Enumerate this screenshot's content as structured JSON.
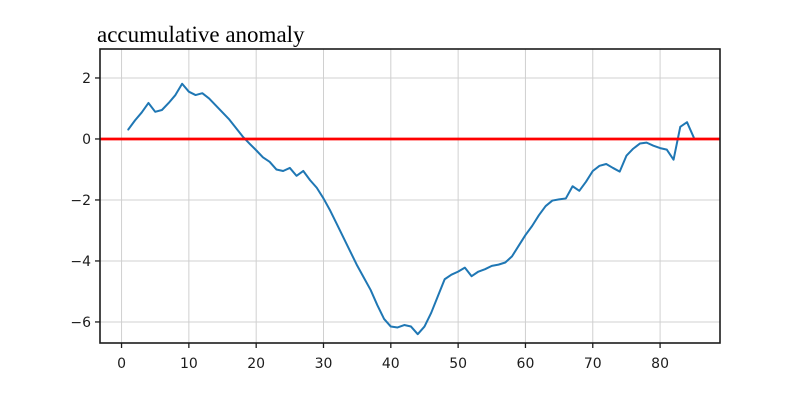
{
  "chart_data": {
    "type": "line",
    "title": "accumulative anomaly",
    "x": [
      1,
      2,
      3,
      4,
      5,
      6,
      7,
      8,
      9,
      10,
      11,
      12,
      13,
      14,
      15,
      16,
      17,
      18,
      19,
      20,
      21,
      22,
      23,
      24,
      25,
      26,
      27,
      28,
      29,
      30,
      31,
      32,
      33,
      34,
      35,
      36,
      37,
      38,
      39,
      40,
      41,
      42,
      43,
      44,
      45,
      46,
      47,
      48,
      49,
      50,
      51,
      52,
      53,
      54,
      55,
      56,
      57,
      58,
      59,
      60,
      61,
      62,
      63,
      64,
      65,
      66,
      67,
      68,
      69,
      70,
      71,
      72,
      73,
      74,
      75,
      76,
      77,
      78,
      79,
      80,
      81,
      82,
      83,
      84,
      85
    ],
    "series": [
      {
        "name": "accumulative anomaly",
        "color": "#1f77b4",
        "values": [
          0.31,
          0.61,
          0.87,
          1.18,
          0.89,
          0.95,
          1.18,
          1.44,
          1.81,
          1.55,
          1.44,
          1.5,
          1.33,
          1.1,
          0.87,
          0.64,
          0.36,
          0.08,
          -0.15,
          -0.37,
          -0.6,
          -0.75,
          -1.0,
          -1.05,
          -0.95,
          -1.21,
          -1.05,
          -1.35,
          -1.6,
          -1.95,
          -2.35,
          -2.8,
          -3.25,
          -3.7,
          -4.15,
          -4.55,
          -4.95,
          -5.45,
          -5.9,
          -6.15,
          -6.18,
          -6.1,
          -6.15,
          -6.4,
          -6.15,
          -5.7,
          -5.15,
          -4.6,
          -4.45,
          -4.35,
          -4.22,
          -4.5,
          -4.35,
          -4.27,
          -4.16,
          -4.12,
          -4.05,
          -3.85,
          -3.5,
          -3.15,
          -2.85,
          -2.5,
          -2.2,
          -2.02,
          -1.98,
          -1.95,
          -1.55,
          -1.7,
          -1.4,
          -1.05,
          -0.88,
          -0.82,
          -0.95,
          -1.07,
          -0.55,
          -0.32,
          -0.15,
          -0.12,
          -0.22,
          -0.3,
          -0.35,
          -0.68,
          0.4,
          0.55,
          0.05
        ]
      }
    ],
    "reference_line": {
      "y": 0,
      "color": "#ff0000"
    },
    "xlim": [
      -3.2,
      88.9
    ],
    "ylim": [
      -6.69,
      2.95
    ],
    "x_ticks": {
      "values": [
        0,
        10,
        20,
        30,
        40,
        50,
        60,
        70,
        80
      ],
      "labels": [
        "0",
        "10",
        "20",
        "30",
        "40",
        "50",
        "60",
        "70",
        "80"
      ]
    },
    "y_ticks": {
      "values": [
        2,
        0,
        -2,
        -4,
        -6
      ],
      "labels": [
        "2",
        "0",
        "−2",
        "−4",
        "−6"
      ]
    },
    "grid": true,
    "legend": null,
    "colors": {
      "grid": "#d0d0d0",
      "spine": "#1c1c1c",
      "tick_label": "#1c1c1c",
      "background": "#ffffff"
    }
  }
}
